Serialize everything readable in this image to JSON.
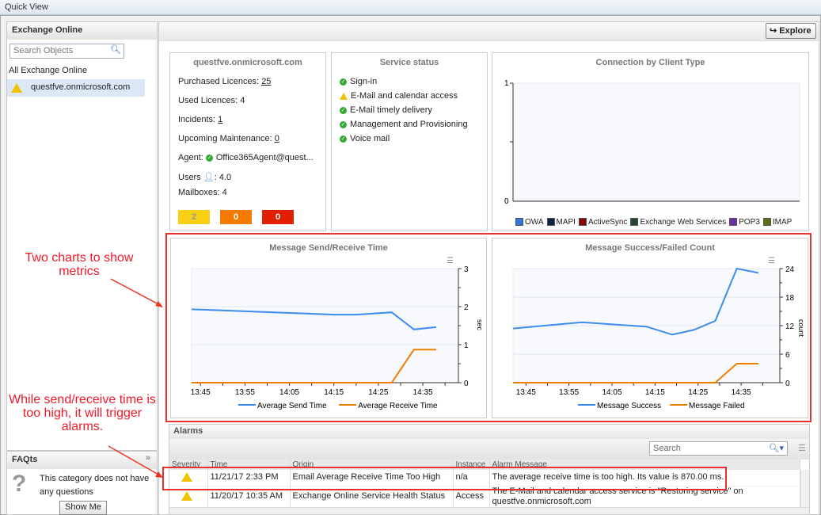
{
  "window": {
    "title": "Quick View"
  },
  "sidebar": {
    "title": "Exchange Online",
    "search_placeholder": "Search Objects",
    "all_label": "All Exchange Online",
    "selected_item": "questfve.onmicrosoft.com"
  },
  "faq": {
    "title": "FAQts",
    "text1": "This category does not have",
    "text2": "any questions",
    "button": "Show Me"
  },
  "toolbar": {
    "explore": "Explore"
  },
  "tenant": {
    "title": "questfve.onmicrosoft.com",
    "purchased_label": "Purchased Licences:",
    "purchased": "25",
    "used_label": "Used Licences: 4",
    "incidents_label": "Incidents:",
    "incidents": "1",
    "maint_label": "Upcoming Maintenance:",
    "maint": "0",
    "agent_label": "Agent:",
    "agent": "Office365Agent@quest...",
    "users_label": "Users",
    "users": ": 4.0",
    "mailboxes": "Mailboxes: 4",
    "badges": [
      {
        "value": "2",
        "color": "#f9cf16"
      },
      {
        "value": "0",
        "color": "#f57a00"
      },
      {
        "value": "0",
        "color": "#e02000"
      }
    ]
  },
  "service": {
    "title": "Service status",
    "items": [
      {
        "label": "Sign-in",
        "status": "ok"
      },
      {
        "label": "E-Mail and calendar access",
        "status": "warning"
      },
      {
        "label": "E-Mail timely delivery",
        "status": "ok"
      },
      {
        "label": "Management and Provisioning",
        "status": "ok"
      },
      {
        "label": "Voice mail",
        "status": "ok"
      }
    ]
  },
  "annotations": {
    "a1": "Two charts to show metrics",
    "a2": "While send/receive time is too high, it will trigger alarms."
  },
  "alarms": {
    "title": "Alarms",
    "search_placeholder": "Search",
    "columns": [
      "Severity",
      "Time",
      "Origin",
      "Instance",
      "Alarm Message"
    ],
    "rows": [
      {
        "severity": "warning",
        "time": "11/21/17 2:33 PM",
        "origin": "Email Average Receive Time Too High",
        "instance": "n/a",
        "message": "The average receive time is too high. Its value is 870.00 ms."
      },
      {
        "severity": "warning",
        "time": "11/20/17 10:35 AM",
        "origin": "Exchange Online Service Health Status",
        "instance": "Access",
        "message": "The E-Mail and calendar access service is \"Restoring service\" on questfve.onmicrosoft.com"
      }
    ]
  },
  "chart_data": [
    {
      "type": "bar",
      "title": "Connection by Client Type",
      "ylim": [
        0,
        1
      ],
      "yticks": [
        "0",
        "1"
      ],
      "legend": "bottom",
      "series": [
        {
          "name": "OWA",
          "color": "#2f78d6"
        },
        {
          "name": "MAPI",
          "color": "#0e2447"
        },
        {
          "name": "ActiveSync",
          "color": "#8b0000"
        },
        {
          "name": "Exchange Web Services",
          "color": "#24472e"
        },
        {
          "name": "POP3",
          "color": "#6a2fa0"
        },
        {
          "name": "IMAP",
          "color": "#5b7012"
        }
      ],
      "values": []
    },
    {
      "type": "line",
      "title": "Message Send/Receive Time",
      "ylabel": "sec",
      "ylim": [
        0,
        3
      ],
      "yticks": [
        "0",
        "1",
        "2",
        "3"
      ],
      "xlim": [
        "13:43",
        "14:43"
      ],
      "xticks": [
        "13:45",
        "13:55",
        "14:05",
        "14:15",
        "14:25",
        "14:35"
      ],
      "legend": "bottom",
      "series": [
        {
          "name": "Average Send Time",
          "color": "#3b8cf0",
          "points": [
            [
              "13:43",
              1.93
            ],
            [
              "14:15",
              1.79
            ],
            [
              "14:20",
              1.79
            ],
            [
              "14:28",
              1.85
            ],
            [
              "14:33",
              1.4
            ],
            [
              "14:38",
              1.46
            ]
          ]
        },
        {
          "name": "Average Receive Time",
          "color": "#ef7d00",
          "points": [
            [
              "13:43",
              0
            ],
            [
              "14:28",
              0
            ],
            [
              "14:33",
              0.87
            ],
            [
              "14:38",
              0.87
            ]
          ]
        }
      ]
    },
    {
      "type": "line",
      "title": "Message Success/Failed Count",
      "ylabel": "count",
      "ylim": [
        0,
        24
      ],
      "yticks": [
        "0",
        "6",
        "12",
        "18",
        "24"
      ],
      "xlim": [
        "13:42",
        "14:44"
      ],
      "xticks": [
        "13:45",
        "13:55",
        "14:05",
        "14:15",
        "14:25",
        "14:35"
      ],
      "legend": "bottom",
      "series": [
        {
          "name": "Message Success",
          "color": "#3b8cf0",
          "points": [
            [
              "13:42",
              11.4
            ],
            [
              "13:58",
              12.7
            ],
            [
              "14:13",
              11.8
            ],
            [
              "14:19",
              10.1
            ],
            [
              "14:24",
              11.1
            ],
            [
              "14:29",
              13
            ],
            [
              "14:34",
              24
            ],
            [
              "14:39",
              23.1
            ]
          ]
        },
        {
          "name": "Message Failed",
          "color": "#ef7d00",
          "points": [
            [
              "13:42",
              0
            ],
            [
              "14:29",
              0
            ],
            [
              "14:34",
              4
            ],
            [
              "14:39",
              4
            ]
          ]
        }
      ]
    }
  ]
}
